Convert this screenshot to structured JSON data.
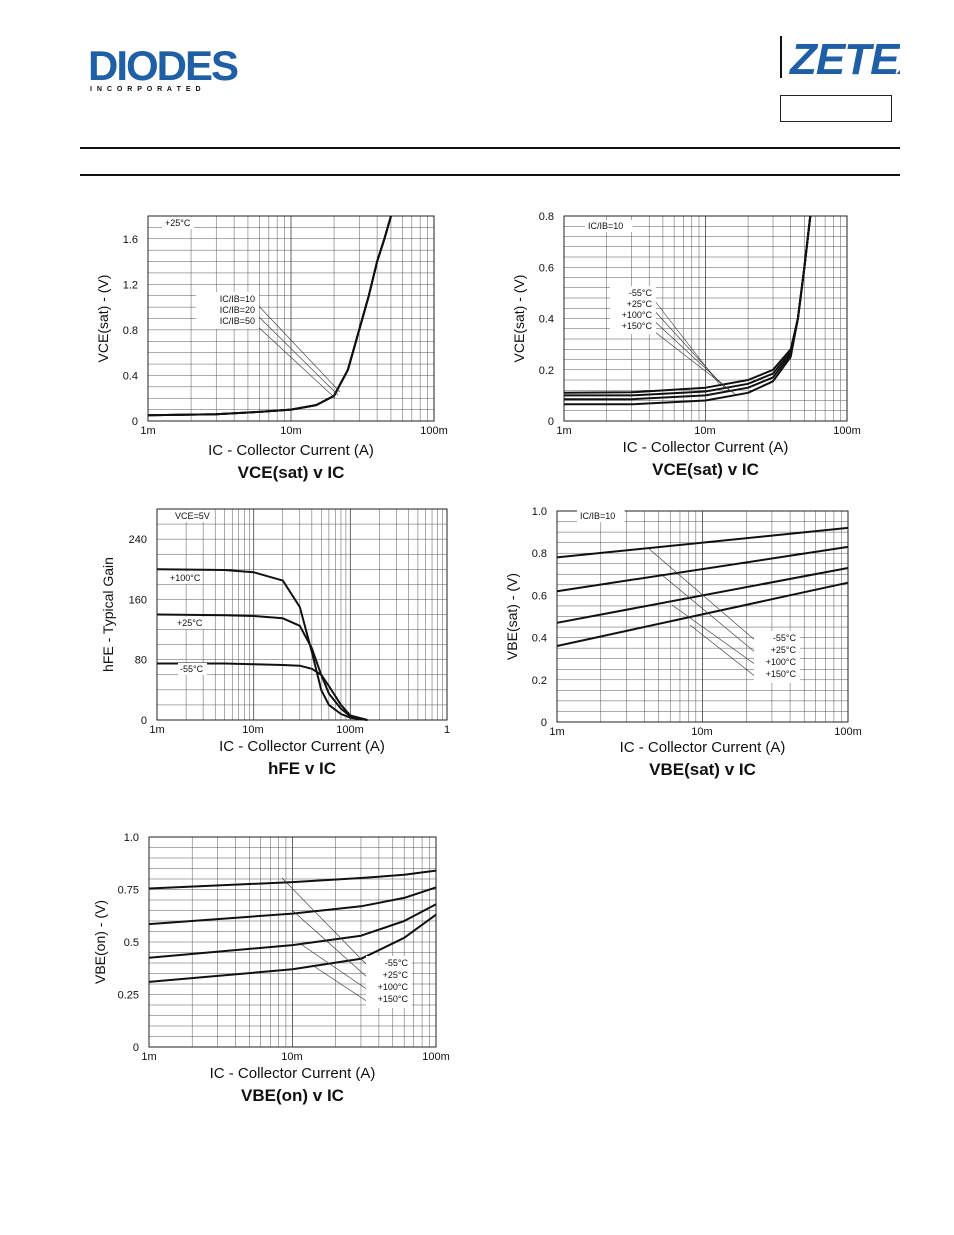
{
  "header": {
    "brand_left": "DIODES",
    "brand_left_sub": "I N C O R P O R A T E D",
    "brand_right": "ZETEX",
    "brand_color": "#1f5fa6"
  },
  "chart_data": [
    {
      "id": "vcesat-multi-ratio",
      "type": "line",
      "title": "VCE(sat) v IC",
      "xlabel": "IC - Collector Current (A)",
      "ylabel": "VCE(sat) - (V)",
      "x_scale": "log",
      "xlim": [
        0.001,
        0.1
      ],
      "ylim": [
        0,
        1.8
      ],
      "xticks": [
        "1m",
        "10m",
        "100m"
      ],
      "yticks": [
        "0",
        "0.4",
        "0.8",
        "1.2",
        "1.6"
      ],
      "annotations": [
        "+25°C"
      ],
      "legend": [
        "IC/IB=10",
        "IC/IB=20",
        "IC/IB=50"
      ],
      "series": [
        {
          "name": "IC/IB=10",
          "x": [
            0.001,
            0.003,
            0.006,
            0.01,
            0.015,
            0.02,
            0.025,
            0.03,
            0.035,
            0.04,
            0.045,
            0.05
          ],
          "y": [
            0.05,
            0.06,
            0.08,
            0.1,
            0.14,
            0.22,
            0.45,
            0.8,
            1.1,
            1.4,
            1.6,
            1.8
          ]
        },
        {
          "name": "IC/IB=20",
          "x": [
            0.001,
            0.003,
            0.006,
            0.01,
            0.015,
            0.02,
            0.025,
            0.03,
            0.035,
            0.04,
            0.045,
            0.05
          ],
          "y": [
            0.05,
            0.06,
            0.08,
            0.1,
            0.14,
            0.22,
            0.45,
            0.8,
            1.1,
            1.4,
            1.6,
            1.8
          ]
        },
        {
          "name": "IC/IB=50",
          "x": [
            0.001,
            0.003,
            0.006,
            0.01,
            0.015,
            0.02,
            0.025,
            0.03,
            0.035,
            0.04,
            0.045,
            0.05
          ],
          "y": [
            0.05,
            0.06,
            0.08,
            0.1,
            0.14,
            0.22,
            0.45,
            0.8,
            1.1,
            1.4,
            1.6,
            1.8
          ]
        }
      ]
    },
    {
      "id": "vcesat-temp",
      "type": "line",
      "title": "VCE(sat) v IC",
      "xlabel": "IC - Collector Current (A)",
      "ylabel": "VCE(sat) - (V)",
      "x_scale": "log",
      "xlim": [
        0.001,
        0.1
      ],
      "ylim": [
        0,
        0.8
      ],
      "xticks": [
        "1m",
        "10m",
        "100m"
      ],
      "yticks": [
        "0",
        "0.2",
        "0.4",
        "0.6",
        "0.8"
      ],
      "annotations": [
        "IC/IB=10"
      ],
      "legend": [
        "-55°C",
        "+25°C",
        "+100°C",
        "+150°C"
      ],
      "series": [
        {
          "name": "-55°C",
          "x": [
            0.001,
            0.003,
            0.01,
            0.02,
            0.03,
            0.04,
            0.045,
            0.05,
            0.055
          ],
          "y": [
            0.11,
            0.112,
            0.13,
            0.16,
            0.2,
            0.28,
            0.4,
            0.6,
            0.8
          ]
        },
        {
          "name": "+25°C",
          "x": [
            0.001,
            0.003,
            0.01,
            0.02,
            0.03,
            0.04,
            0.045,
            0.05,
            0.055
          ],
          "y": [
            0.1,
            0.1,
            0.115,
            0.145,
            0.185,
            0.27,
            0.4,
            0.6,
            0.8
          ]
        },
        {
          "name": "+100°C",
          "x": [
            0.001,
            0.003,
            0.01,
            0.02,
            0.03,
            0.04,
            0.045,
            0.05,
            0.055
          ],
          "y": [
            0.085,
            0.085,
            0.1,
            0.13,
            0.17,
            0.26,
            0.4,
            0.6,
            0.8
          ]
        },
        {
          "name": "+150°C",
          "x": [
            0.001,
            0.003,
            0.01,
            0.02,
            0.03,
            0.04,
            0.045,
            0.05,
            0.055
          ],
          "y": [
            0.065,
            0.065,
            0.08,
            0.11,
            0.155,
            0.25,
            0.4,
            0.6,
            0.8
          ]
        }
      ]
    },
    {
      "id": "hfe",
      "type": "line",
      "title": "hFE v IC",
      "xlabel": "IC - Collector Current (A)",
      "ylabel": "hFE - Typical Gain",
      "x_scale": "log",
      "xlim": [
        0.001,
        1
      ],
      "ylim": [
        0,
        280
      ],
      "xticks": [
        "1m",
        "10m",
        "100m",
        "1"
      ],
      "yticks": [
        "0",
        "80",
        "160",
        "240"
      ],
      "annotations": [
        "VCE=5V"
      ],
      "legend": [
        "+100°C",
        "+25°C",
        "-55°C"
      ],
      "series": [
        {
          "name": "+100°C",
          "x": [
            0.001,
            0.005,
            0.01,
            0.02,
            0.03,
            0.04,
            0.05,
            0.06,
            0.08,
            0.1,
            0.15
          ],
          "y": [
            200,
            199,
            196,
            185,
            150,
            90,
            40,
            20,
            8,
            3,
            0
          ]
        },
        {
          "name": "+25°C",
          "x": [
            0.001,
            0.005,
            0.01,
            0.02,
            0.03,
            0.04,
            0.05,
            0.06,
            0.08,
            0.1,
            0.15
          ],
          "y": [
            140,
            139,
            138,
            135,
            125,
            95,
            60,
            35,
            15,
            5,
            0
          ]
        },
        {
          "name": "-55°C",
          "x": [
            0.001,
            0.005,
            0.01,
            0.02,
            0.03,
            0.04,
            0.05,
            0.06,
            0.08,
            0.1,
            0.15
          ],
          "y": [
            75,
            75,
            74,
            73,
            72,
            68,
            60,
            45,
            20,
            6,
            0
          ]
        }
      ]
    },
    {
      "id": "vbesat",
      "type": "line",
      "title": "VBE(sat) v IC",
      "xlabel": "IC - Collector Current (A)",
      "ylabel": "VBE(sat) - (V)",
      "x_scale": "log",
      "xlim": [
        0.001,
        0.1
      ],
      "ylim": [
        0,
        1.0
      ],
      "xticks": [
        "1m",
        "10m",
        "100m"
      ],
      "yticks": [
        "0",
        "0.2",
        "0.4",
        "0.6",
        "0.8",
        "1.0"
      ],
      "annotations": [
        "IC/IB=10"
      ],
      "legend": [
        "-55°C",
        "+25°C",
        "+100°C",
        "+150°C"
      ],
      "series": [
        {
          "name": "-55°C",
          "x": [
            0.001,
            0.1
          ],
          "y": [
            0.78,
            0.92
          ]
        },
        {
          "name": "+25°C",
          "x": [
            0.001,
            0.1
          ],
          "y": [
            0.62,
            0.83
          ]
        },
        {
          "name": "+100°C",
          "x": [
            0.001,
            0.1
          ],
          "y": [
            0.47,
            0.73
          ]
        },
        {
          "name": "+150°C",
          "x": [
            0.001,
            0.1
          ],
          "y": [
            0.36,
            0.66
          ]
        }
      ]
    },
    {
      "id": "vbeon",
      "type": "line",
      "title": "VBE(on) v IC",
      "xlabel": "IC - Collector Current (A)",
      "ylabel": "VBE(on) - (V)",
      "x_scale": "log",
      "xlim": [
        0.001,
        0.1
      ],
      "ylim": [
        0,
        1.0
      ],
      "xticks": [
        "1m",
        "10m",
        "100m"
      ],
      "yticks": [
        "0",
        "0.25",
        "0.5",
        "0.75",
        "1.0"
      ],
      "annotations": [],
      "legend": [
        "-55°C",
        "+25°C",
        "+100°C",
        "+150°C"
      ],
      "series": [
        {
          "name": "-55°C",
          "x": [
            0.001,
            0.01,
            0.03,
            0.06,
            0.1
          ],
          "y": [
            0.755,
            0.785,
            0.805,
            0.82,
            0.84
          ]
        },
        {
          "name": "+25°C",
          "x": [
            0.001,
            0.01,
            0.03,
            0.06,
            0.1
          ],
          "y": [
            0.585,
            0.635,
            0.67,
            0.71,
            0.76
          ]
        },
        {
          "name": "+100°C",
          "x": [
            0.001,
            0.01,
            0.03,
            0.06,
            0.1
          ],
          "y": [
            0.425,
            0.485,
            0.53,
            0.6,
            0.68
          ]
        },
        {
          "name": "+150°C",
          "x": [
            0.001,
            0.01,
            0.03,
            0.06,
            0.1
          ],
          "y": [
            0.31,
            0.37,
            0.42,
            0.52,
            0.63
          ]
        }
      ]
    }
  ]
}
